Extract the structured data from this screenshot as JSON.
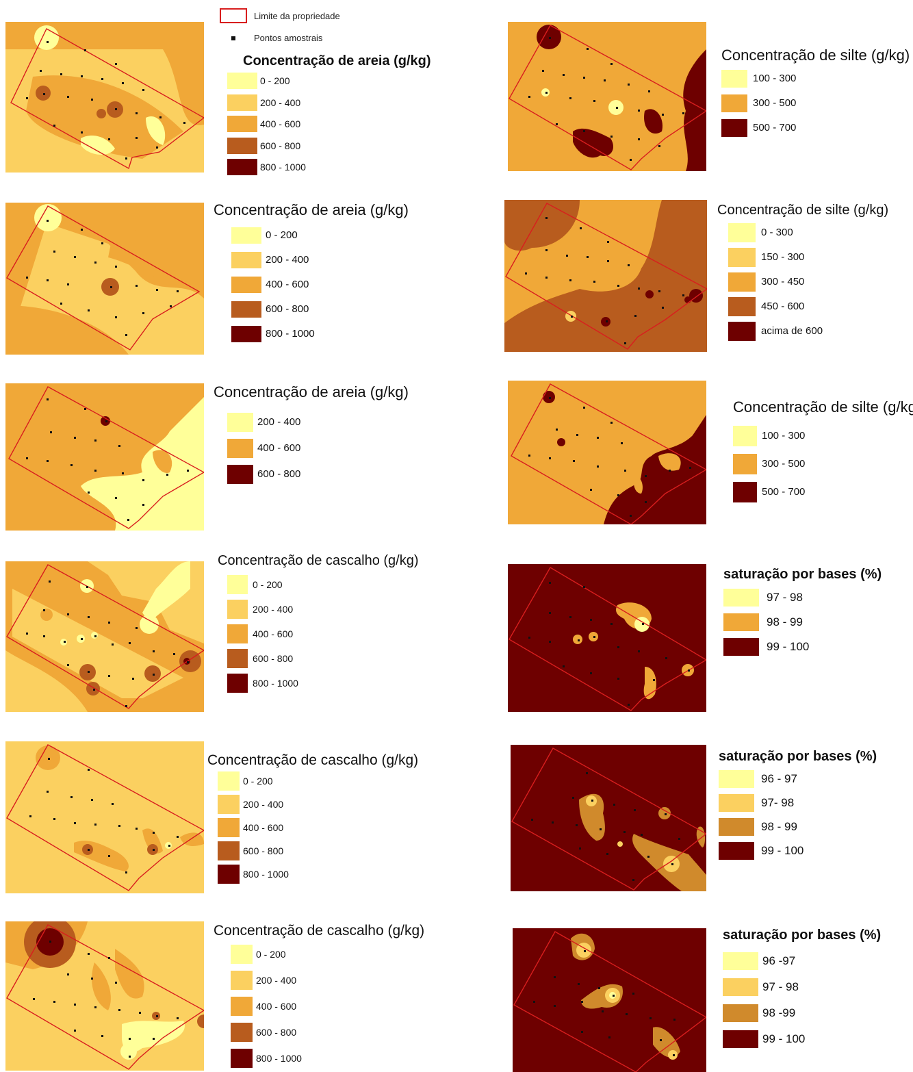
{
  "header": {
    "boundary_label": "Limite da propriedade",
    "points_label": "Pontos amostrais",
    "boundary_color": "#d81e1e"
  },
  "panels": [
    {
      "id": "a1",
      "title": "Concentração de areia (g/kg)",
      "classes": [
        {
          "label": "0 - 200",
          "color": "#ffff99"
        },
        {
          "label": "200 - 400",
          "color": "#fbd060"
        },
        {
          "label": "400 - 600",
          "color": "#f0a838"
        },
        {
          "label": "600 - 800",
          "color": "#b85c1e"
        },
        {
          "label": "800 - 1000",
          "color": "#6e0000"
        }
      ]
    },
    {
      "id": "a2",
      "title": "Concentração de areia (g/kg)",
      "classes": [
        {
          "label": "0 - 200",
          "color": "#ffff99"
        },
        {
          "label": "200 - 400",
          "color": "#fbd060"
        },
        {
          "label": "400 - 600",
          "color": "#f0a838"
        },
        {
          "label": "600 - 800",
          "color": "#b85c1e"
        },
        {
          "label": "800 - 1000",
          "color": "#6e0000"
        }
      ]
    },
    {
      "id": "a3",
      "title": "Concentração de areia (g/kg)",
      "classes": [
        {
          "label": "200 - 400",
          "color": "#ffff99"
        },
        {
          "label": "400 - 600",
          "color": "#f0a838"
        },
        {
          "label": "600 - 800",
          "color": "#6e0000"
        }
      ]
    },
    {
      "id": "c1",
      "title": "Concentração de cascalho (g/kg)",
      "classes": [
        {
          "label": "0 - 200",
          "color": "#ffff99"
        },
        {
          "label": "200 - 400",
          "color": "#fbd060"
        },
        {
          "label": "400 - 600",
          "color": "#f0a838"
        },
        {
          "label": "600 - 800",
          "color": "#b85c1e"
        },
        {
          "label": "800 - 1000",
          "color": "#6e0000"
        }
      ]
    },
    {
      "id": "c2",
      "title": "Concentração de cascalho (g/kg)",
      "classes": [
        {
          "label": "0 - 200",
          "color": "#ffff99"
        },
        {
          "label": "200 - 400",
          "color": "#fbd060"
        },
        {
          "label": "400 - 600",
          "color": "#f0a838"
        },
        {
          "label": "600 - 800",
          "color": "#b85c1e"
        },
        {
          "label": "800 - 1000",
          "color": "#6e0000"
        }
      ]
    },
    {
      "id": "c3",
      "title": "Concentração de cascalho (g/kg)",
      "classes": [
        {
          "label": "0 - 200",
          "color": "#ffff99"
        },
        {
          "label": "200 - 400",
          "color": "#fbd060"
        },
        {
          "label": "400 - 600",
          "color": "#f0a838"
        },
        {
          "label": "600 - 800",
          "color": "#b85c1e"
        },
        {
          "label": "800 - 1000",
          "color": "#6e0000"
        }
      ]
    },
    {
      "id": "s1",
      "title": "Concentração de silte (g/kg)",
      "classes": [
        {
          "label": "100 - 300",
          "color": "#ffff99"
        },
        {
          "label": "300 - 500",
          "color": "#f0a838"
        },
        {
          "label": "500 - 700",
          "color": "#6e0000"
        }
      ]
    },
    {
      "id": "s2",
      "title": "Concentração de silte (g/kg)",
      "classes": [
        {
          "label": "0 - 300",
          "color": "#ffff99"
        },
        {
          "label": "150 - 300",
          "color": "#fbd060"
        },
        {
          "label": "300 - 450",
          "color": "#f0a838"
        },
        {
          "label": "450 - 600",
          "color": "#b85c1e"
        },
        {
          "label": "acima de 600",
          "color": "#6e0000"
        }
      ]
    },
    {
      "id": "s3",
      "title": "Concentração de silte (g/kg)",
      "classes": [
        {
          "label": "100 - 300",
          "color": "#ffff99"
        },
        {
          "label": "300 - 500",
          "color": "#f0a838"
        },
        {
          "label": "500 - 700",
          "color": "#6e0000"
        }
      ]
    },
    {
      "id": "b1",
      "title": "saturação por bases (%)",
      "classes": [
        {
          "label": "97 - 98",
          "color": "#ffff99"
        },
        {
          "label": "98 - 99",
          "color": "#f0a838"
        },
        {
          "label": "99 - 100",
          "color": "#6e0000"
        }
      ]
    },
    {
      "id": "b2",
      "title": "saturação por bases (%)",
      "classes": [
        {
          "label": "96 - 97",
          "color": "#ffff99"
        },
        {
          "label": "97- 98",
          "color": "#fbd060"
        },
        {
          "label": "98 - 99",
          "color": "#d08a2c"
        },
        {
          "label": "99 - 100",
          "color": "#6e0000"
        }
      ]
    },
    {
      "id": "b3",
      "title": "saturação por bases (%)",
      "classes": [
        {
          "label": "96 -97",
          "color": "#ffff99"
        },
        {
          "label": "97 - 98",
          "color": "#fbd060"
        },
        {
          "label": "98 -99",
          "color": "#d08a2c"
        },
        {
          "label": "99 - 100",
          "color": "#6e0000"
        }
      ]
    }
  ]
}
